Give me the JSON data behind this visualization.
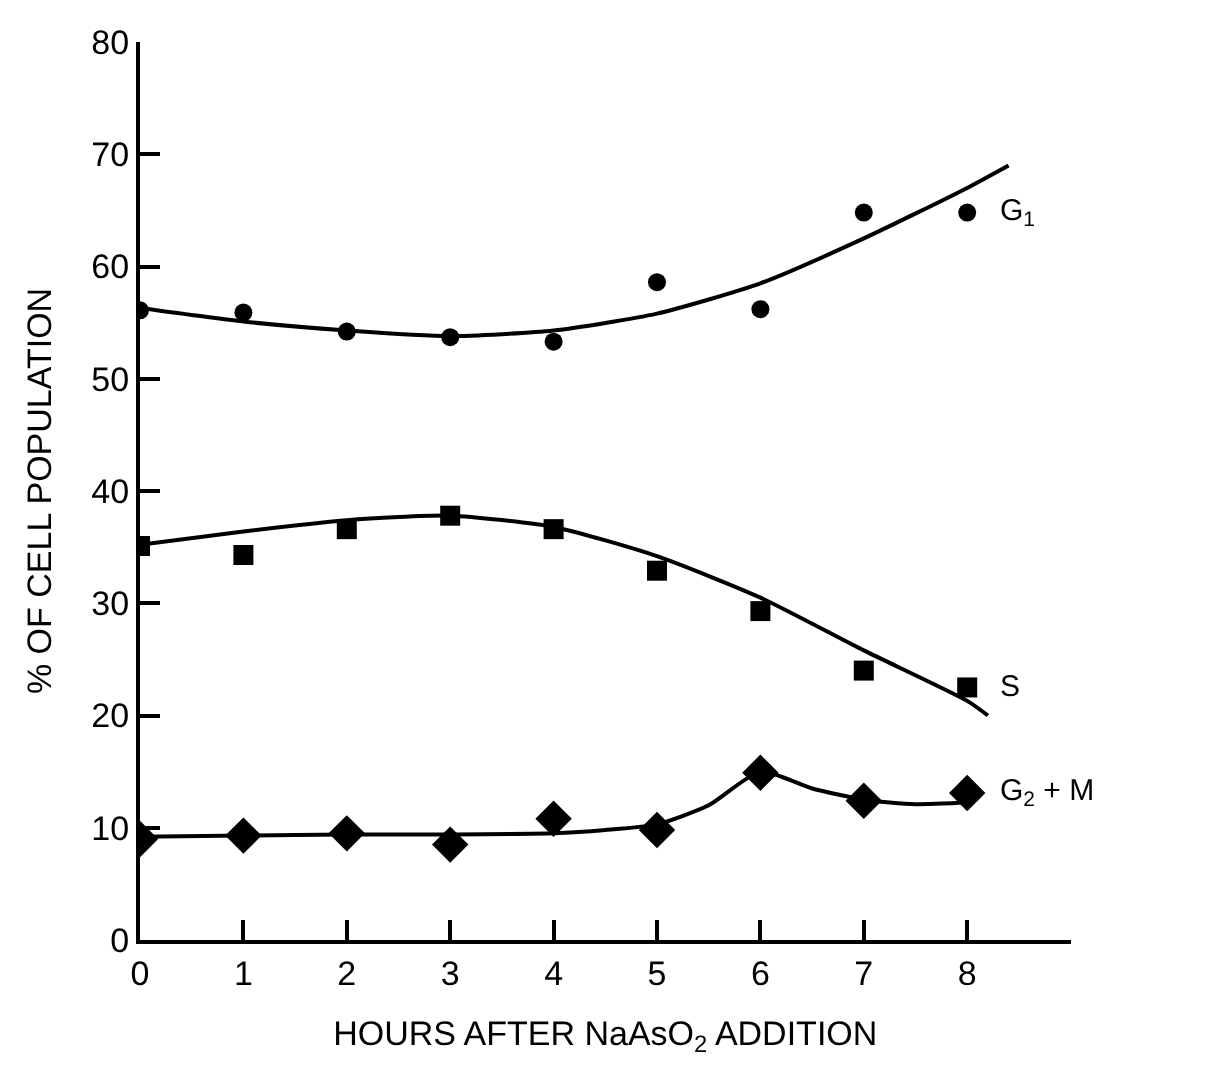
{
  "chart_data": {
    "type": "scatter",
    "xlabel": "HOURS AFTER NaAsO$_{2}$ ADDITION",
    "ylabel": "% OF CELL POPULATION",
    "xlim": [
      0,
      9
    ],
    "ylim": [
      0,
      80
    ],
    "xticks": [
      0,
      1,
      2,
      3,
      4,
      5,
      6,
      7,
      8
    ],
    "yticks": [
      0,
      10,
      20,
      30,
      40,
      50,
      60,
      70,
      80
    ],
    "x": [
      0,
      1,
      2,
      3,
      4,
      5,
      6,
      7,
      8
    ],
    "series": [
      {
        "name": "G$_{1}$",
        "color": "#000000",
        "marker": "circle",
        "values": [
          56.1,
          55.9,
          54.2,
          53.7,
          53.3,
          58.6,
          56.2,
          64.8,
          64.8
        ]
      },
      {
        "name": "S",
        "color": "#000000",
        "marker": "square",
        "values": [
          35.1,
          34.3,
          36.6,
          37.8,
          36.6,
          32.9,
          29.3,
          24.0,
          22.5
        ]
      },
      {
        "name": "G$_{2}$ + M",
        "color": "#000000",
        "marker": "diamond",
        "values": [
          9.0,
          9.3,
          9.5,
          8.5,
          10.8,
          9.8,
          14.9,
          12.4,
          13.1
        ]
      },
      {
        "type": "line",
        "color": "#000000",
        "marker": "none",
        "line_style": "solid",
        "x": [
          0,
          1,
          2,
          3,
          4,
          5,
          6,
          7,
          8,
          8.4
        ],
        "values": [
          56.3,
          55.1,
          54.3,
          53.8,
          54.3,
          55.8,
          58.5,
          62.5,
          67,
          69
        ]
      },
      {
        "type": "line",
        "color": "#000000",
        "marker": "none",
        "line_style": "solid",
        "x": [
          0,
          1,
          2,
          3,
          4,
          5,
          6,
          7,
          8,
          8.2
        ],
        "values": [
          35.2,
          36.4,
          37.4,
          37.8,
          36.8,
          34.2,
          30.5,
          25.8,
          21.3,
          20.0
        ]
      },
      {
        "type": "line",
        "color": "#000000",
        "marker": "none",
        "line_style": "solid",
        "x": [
          0,
          1,
          2,
          3,
          4,
          4.5,
          5,
          5.5,
          6,
          6.5,
          7,
          7.5,
          8,
          8.1
        ],
        "values": [
          9.2,
          9.3,
          9.4,
          9.4,
          9.5,
          9.8,
          10.3,
          12,
          15,
          13.5,
          12.5,
          12.1,
          12.3,
          12.6
        ]
      }
    ]
  }
}
